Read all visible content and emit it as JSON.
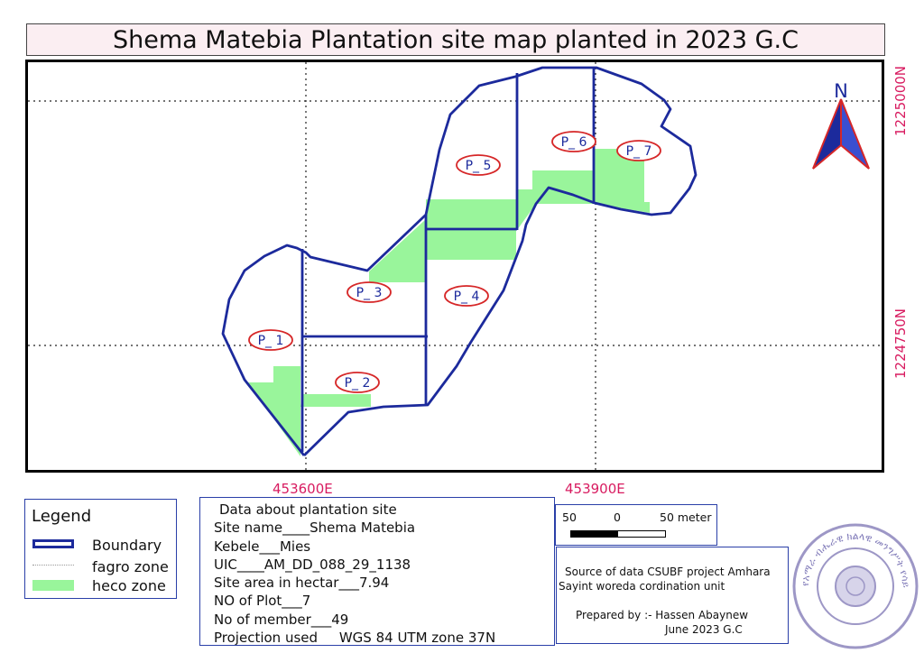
{
  "title": "Shema Matebia Plantation site map planted in 2023 G.C",
  "north_arrow": {
    "label": "N",
    "icon": "north-arrow-icon"
  },
  "grid_labels": {
    "easting": [
      "453600E",
      "453900E"
    ],
    "northing": [
      "1225000N",
      "1224750N"
    ]
  },
  "plots": [
    "P_ 1",
    "P_ 2",
    "P_ 3",
    "P_ 4",
    "P_ 5",
    "P_ 6",
    "P_ 7"
  ],
  "colors": {
    "boundary": "#1c2a9c",
    "heco_zone": "#99f59b",
    "coordinate_labels": "#d81b60",
    "plot_label_ring": "#d62728",
    "plot_label_text": "#1c2a9c",
    "title_background": "#fbeef2"
  },
  "legend": {
    "title": "Legend",
    "items": [
      "Boundary",
      "fagro zone",
      "heco zone"
    ]
  },
  "info": {
    "heading": "Data about plantation site",
    "site_name": "Site name____Shema Matebia",
    "kebele": "Kebele___Mies",
    "uic": "UIC____AM_DD_088_29_1138",
    "site_area": "Site area in hectar___7.94",
    "no_of_plot": "NO of Plot___7",
    "no_of_member": "No of member___49",
    "projection": "Projection used     WGS 84 UTM zone 37N"
  },
  "scale": {
    "left": "50",
    "middle": "0",
    "right": "50 meter"
  },
  "source": {
    "line1": "Source of data CSUBF project Amhara",
    "line2": "Sayint woreda cordination unit",
    "prepared_by": "Prepared by :- Hassen Abaynew",
    "date": "June 2023 G.C"
  },
  "stamp": {
    "icon": "official-stamp-icon",
    "text": "የአማራ ብሔራዊ ክልላዊ መንግሥት የሳይንት ወረዳ"
  }
}
